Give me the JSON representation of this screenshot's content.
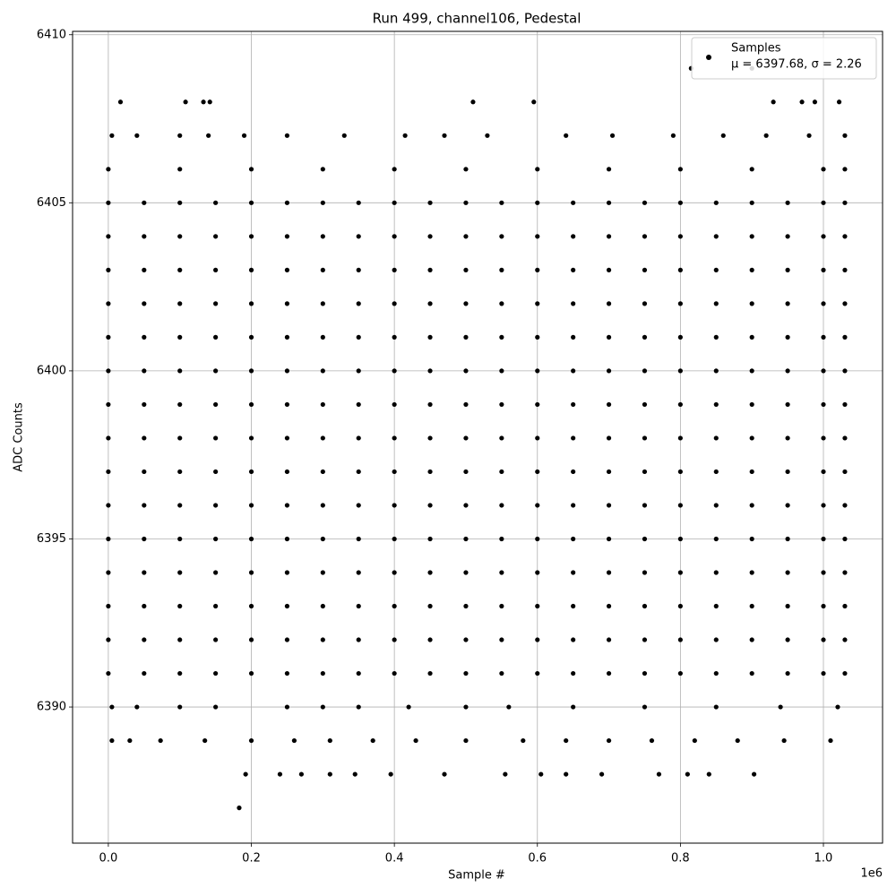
{
  "chart_data": {
    "type": "scatter",
    "title": "Run 499, channel106, Pedestal",
    "x_label": "Sample #",
    "y_label": "ADC Counts",
    "x_offset_label": "1e6",
    "legend_note": "μ = 6397.68, σ = 2.26",
    "legend_loc": "upper right",
    "grid": true,
    "xlim": [
      -50000,
      1082700
    ],
    "ylim": [
      6385.95,
      6410.1
    ],
    "xticks": [
      {
        "value": 0,
        "label": "0.0"
      },
      {
        "value": 200000,
        "label": "0.2"
      },
      {
        "value": 400000,
        "label": "0.4"
      },
      {
        "value": 600000,
        "label": "0.6"
      },
      {
        "value": 800000,
        "label": "0.8"
      },
      {
        "value": 1000000,
        "label": "1.0"
      }
    ],
    "yticks": [
      6390,
      6395,
      6400,
      6405,
      6410
    ],
    "series": [
      {
        "name": "Samples",
        "color": "#000000",
        "x": [
          0,
          50000,
          100000,
          150000,
          200000,
          250000,
          300000,
          350000,
          400000,
          450000,
          500000,
          550000,
          600000,
          650000,
          700000,
          750000,
          800000,
          850000,
          900000,
          950000,
          1000000,
          1030000,
          0,
          50000,
          100000,
          150000,
          200000,
          250000,
          300000,
          350000,
          400000,
          450000,
          500000,
          550000,
          600000,
          650000,
          700000,
          750000,
          800000,
          850000,
          900000,
          950000,
          1000000,
          1030000,
          0,
          50000,
          100000,
          150000,
          200000,
          250000,
          300000,
          350000,
          400000,
          450000,
          500000,
          550000,
          600000,
          650000,
          700000,
          750000,
          800000,
          850000,
          900000,
          950000,
          1000000,
          1030000,
          0,
          50000,
          100000,
          150000,
          200000,
          250000,
          300000,
          350000,
          400000,
          450000,
          500000,
          550000,
          600000,
          650000,
          700000,
          750000,
          800000,
          850000,
          900000,
          950000,
          1000000,
          1030000,
          0,
          50000,
          100000,
          150000,
          200000,
          250000,
          300000,
          350000,
          400000,
          450000,
          500000,
          550000,
          600000,
          650000,
          700000,
          750000,
          800000,
          850000,
          900000,
          950000,
          1000000,
          1030000,
          0,
          50000,
          100000,
          150000,
          200000,
          250000,
          300000,
          350000,
          400000,
          450000,
          500000,
          550000,
          600000,
          650000,
          700000,
          750000,
          800000,
          850000,
          900000,
          950000,
          1000000,
          1030000,
          0,
          50000,
          100000,
          150000,
          200000,
          250000,
          300000,
          350000,
          400000,
          450000,
          500000,
          550000,
          600000,
          650000,
          700000,
          750000,
          800000,
          850000,
          900000,
          950000,
          1000000,
          1030000,
          0,
          50000,
          100000,
          150000,
          200000,
          250000,
          300000,
          350000,
          400000,
          450000,
          500000,
          550000,
          600000,
          650000,
          700000,
          750000,
          800000,
          850000,
          900000,
          950000,
          1000000,
          1030000,
          0,
          50000,
          100000,
          150000,
          200000,
          250000,
          300000,
          350000,
          400000,
          450000,
          500000,
          550000,
          600000,
          650000,
          700000,
          750000,
          800000,
          850000,
          900000,
          950000,
          1000000,
          1030000,
          0,
          50000,
          100000,
          150000,
          200000,
          250000,
          300000,
          350000,
          400000,
          450000,
          500000,
          550000,
          600000,
          650000,
          700000,
          750000,
          800000,
          850000,
          900000,
          950000,
          1000000,
          1030000,
          0,
          50000,
          100000,
          150000,
          200000,
          250000,
          300000,
          350000,
          400000,
          450000,
          500000,
          550000,
          600000,
          650000,
          700000,
          750000,
          800000,
          850000,
          900000,
          950000,
          1000000,
          1030000,
          0,
          50000,
          100000,
          150000,
          200000,
          250000,
          300000,
          350000,
          400000,
          450000,
          500000,
          550000,
          600000,
          650000,
          700000,
          750000,
          800000,
          850000,
          900000,
          950000,
          1000000,
          1030000,
          0,
          50000,
          100000,
          150000,
          200000,
          250000,
          300000,
          350000,
          400000,
          450000,
          500000,
          550000,
          600000,
          650000,
          700000,
          750000,
          800000,
          850000,
          900000,
          950000,
          1000000,
          1030000,
          0,
          50000,
          100000,
          150000,
          200000,
          250000,
          300000,
          350000,
          400000,
          450000,
          500000,
          550000,
          600000,
          650000,
          700000,
          750000,
          800000,
          850000,
          900000,
          950000,
          1000000,
          1030000,
          0,
          50000,
          100000,
          150000,
          200000,
          250000,
          300000,
          350000,
          400000,
          450000,
          500000,
          550000,
          600000,
          650000,
          700000,
          750000,
          800000,
          850000,
          900000,
          950000,
          1000000,
          1030000,
          0,
          100000,
          200000,
          300000,
          400000,
          500000,
          600000,
          700000,
          800000,
          900000,
          1000000,
          1030000,
          5000,
          40000,
          100000,
          150000,
          250000,
          300000,
          350000,
          420000,
          500000,
          560000,
          650000,
          750000,
          850000,
          940000,
          1020000,
          5000,
          40000,
          100000,
          140000,
          190000,
          250000,
          330000,
          415000,
          470000,
          530000,
          640000,
          705000,
          790000,
          860000,
          920000,
          980000,
          1030000,
          5000,
          30000,
          73000,
          135000,
          200000,
          260000,
          310000,
          370000,
          430000,
          500000,
          580000,
          640000,
          700000,
          760000,
          820000,
          880000,
          945000,
          1010000,
          17000,
          108000,
          133000,
          142000,
          510000,
          595000,
          930000,
          970000,
          988000,
          1022000,
          815000,
          900000,
          192000,
          240000,
          270000,
          310000,
          345000,
          395000,
          470000,
          555000,
          605000,
          640000,
          690000,
          770000,
          810000,
          840000,
          903000,
          183000
        ],
        "y": [
          6391,
          6391,
          6391,
          6391,
          6391,
          6391,
          6391,
          6391,
          6391,
          6391,
          6391,
          6391,
          6391,
          6391,
          6391,
          6391,
          6391,
          6391,
          6391,
          6391,
          6391,
          6391,
          6392,
          6392,
          6392,
          6392,
          6392,
          6392,
          6392,
          6392,
          6392,
          6392,
          6392,
          6392,
          6392,
          6392,
          6392,
          6392,
          6392,
          6392,
          6392,
          6392,
          6392,
          6392,
          6393,
          6393,
          6393,
          6393,
          6393,
          6393,
          6393,
          6393,
          6393,
          6393,
          6393,
          6393,
          6393,
          6393,
          6393,
          6393,
          6393,
          6393,
          6393,
          6393,
          6393,
          6393,
          6394,
          6394,
          6394,
          6394,
          6394,
          6394,
          6394,
          6394,
          6394,
          6394,
          6394,
          6394,
          6394,
          6394,
          6394,
          6394,
          6394,
          6394,
          6394,
          6394,
          6394,
          6394,
          6395,
          6395,
          6395,
          6395,
          6395,
          6395,
          6395,
          6395,
          6395,
          6395,
          6395,
          6395,
          6395,
          6395,
          6395,
          6395,
          6395,
          6395,
          6395,
          6395,
          6395,
          6395,
          6396,
          6396,
          6396,
          6396,
          6396,
          6396,
          6396,
          6396,
          6396,
          6396,
          6396,
          6396,
          6396,
          6396,
          6396,
          6396,
          6396,
          6396,
          6396,
          6396,
          6396,
          6396,
          6397,
          6397,
          6397,
          6397,
          6397,
          6397,
          6397,
          6397,
          6397,
          6397,
          6397,
          6397,
          6397,
          6397,
          6397,
          6397,
          6397,
          6397,
          6397,
          6397,
          6397,
          6397,
          6398,
          6398,
          6398,
          6398,
          6398,
          6398,
          6398,
          6398,
          6398,
          6398,
          6398,
          6398,
          6398,
          6398,
          6398,
          6398,
          6398,
          6398,
          6398,
          6398,
          6398,
          6398,
          6399,
          6399,
          6399,
          6399,
          6399,
          6399,
          6399,
          6399,
          6399,
          6399,
          6399,
          6399,
          6399,
          6399,
          6399,
          6399,
          6399,
          6399,
          6399,
          6399,
          6399,
          6399,
          6400,
          6400,
          6400,
          6400,
          6400,
          6400,
          6400,
          6400,
          6400,
          6400,
          6400,
          6400,
          6400,
          6400,
          6400,
          6400,
          6400,
          6400,
          6400,
          6400,
          6400,
          6400,
          6401,
          6401,
          6401,
          6401,
          6401,
          6401,
          6401,
          6401,
          6401,
          6401,
          6401,
          6401,
          6401,
          6401,
          6401,
          6401,
          6401,
          6401,
          6401,
          6401,
          6401,
          6401,
          6402,
          6402,
          6402,
          6402,
          6402,
          6402,
          6402,
          6402,
          6402,
          6402,
          6402,
          6402,
          6402,
          6402,
          6402,
          6402,
          6402,
          6402,
          6402,
          6402,
          6402,
          6402,
          6403,
          6403,
          6403,
          6403,
          6403,
          6403,
          6403,
          6403,
          6403,
          6403,
          6403,
          6403,
          6403,
          6403,
          6403,
          6403,
          6403,
          6403,
          6403,
          6403,
          6403,
          6403,
          6404,
          6404,
          6404,
          6404,
          6404,
          6404,
          6404,
          6404,
          6404,
          6404,
          6404,
          6404,
          6404,
          6404,
          6404,
          6404,
          6404,
          6404,
          6404,
          6404,
          6404,
          6404,
          6405,
          6405,
          6405,
          6405,
          6405,
          6405,
          6405,
          6405,
          6405,
          6405,
          6405,
          6405,
          6405,
          6405,
          6405,
          6405,
          6405,
          6405,
          6405,
          6405,
          6405,
          6405,
          6406,
          6406,
          6406,
          6406,
          6406,
          6406,
          6406,
          6406,
          6406,
          6406,
          6406,
          6406,
          6390,
          6390,
          6390,
          6390,
          6390,
          6390,
          6390,
          6390,
          6390,
          6390,
          6390,
          6390,
          6390,
          6390,
          6390,
          6407,
          6407,
          6407,
          6407,
          6407,
          6407,
          6407,
          6407,
          6407,
          6407,
          6407,
          6407,
          6407,
          6407,
          6407,
          6407,
          6407,
          6389,
          6389,
          6389,
          6389,
          6389,
          6389,
          6389,
          6389,
          6389,
          6389,
          6389,
          6389,
          6389,
          6389,
          6389,
          6389,
          6389,
          6389,
          6408,
          6408,
          6408,
          6408,
          6408,
          6408,
          6408,
          6408,
          6408,
          6408,
          6409,
          6409,
          6388,
          6388,
          6388,
          6388,
          6388,
          6388,
          6388,
          6388,
          6388,
          6388,
          6388,
          6388,
          6388,
          6388,
          6388,
          6387
        ]
      }
    ]
  }
}
